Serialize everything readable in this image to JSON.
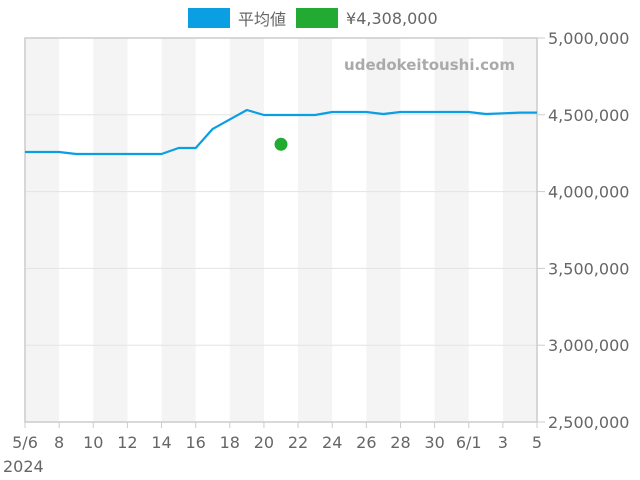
{
  "legend": {
    "items": [
      {
        "label": "平均値",
        "color": "#0a9ee2"
      },
      {
        "label": "¥4,308,000",
        "color": "#22aa33"
      }
    ]
  },
  "watermark": "udedokeitoushi.com",
  "chart_data": {
    "type": "line",
    "title": "",
    "xlabel": "",
    "ylabel": "",
    "year_label": "2024",
    "x_tick_labels": [
      "5/6",
      "8",
      "10",
      "12",
      "14",
      "16",
      "18",
      "20",
      "22",
      "24",
      "26",
      "28",
      "30",
      "6/1",
      "3",
      "5"
    ],
    "y_tick_labels": [
      "5,000,000",
      "4,500,000",
      "4,000,000",
      "3,500,000",
      "3,000,000",
      "2,500,000"
    ],
    "ylim": [
      2500000,
      5000000
    ],
    "y_ticks": [
      5000000,
      4500000,
      4000000,
      3500000,
      3000000,
      2500000
    ],
    "x_range_days": [
      0,
      30
    ],
    "grid": true,
    "legend_position": "top",
    "series": [
      {
        "name": "平均値",
        "color": "#0a9ee2",
        "type": "line",
        "points": [
          {
            "x": "5/6",
            "day": 0,
            "y": 4258000
          },
          {
            "x": "5/7",
            "day": 1,
            "y": 4258000
          },
          {
            "x": "5/8",
            "day": 2,
            "y": 4258000
          },
          {
            "x": "5/9",
            "day": 3,
            "y": 4245000
          },
          {
            "x": "5/10",
            "day": 4,
            "y": 4245000
          },
          {
            "x": "5/11",
            "day": 5,
            "y": 4245000
          },
          {
            "x": "5/12",
            "day": 6,
            "y": 4245000
          },
          {
            "x": "5/13",
            "day": 7,
            "y": 4245000
          },
          {
            "x": "5/14",
            "day": 8,
            "y": 4245000
          },
          {
            "x": "5/15",
            "day": 9,
            "y": 4284000
          },
          {
            "x": "5/16",
            "day": 10,
            "y": 4284000
          },
          {
            "x": "5/17",
            "day": 11,
            "y": 4408000
          },
          {
            "x": "5/18",
            "day": 12,
            "y": 4470000
          },
          {
            "x": "5/19",
            "day": 13,
            "y": 4531000
          },
          {
            "x": "5/20",
            "day": 14,
            "y": 4499000
          },
          {
            "x": "5/21",
            "day": 15,
            "y": 4499000
          },
          {
            "x": "5/22",
            "day": 16,
            "y": 4499000
          },
          {
            "x": "5/23",
            "day": 17,
            "y": 4499000
          },
          {
            "x": "5/24",
            "day": 18,
            "y": 4518000
          },
          {
            "x": "5/25",
            "day": 19,
            "y": 4518000
          },
          {
            "x": "5/26",
            "day": 20,
            "y": 4518000
          },
          {
            "x": "5/27",
            "day": 21,
            "y": 4505000
          },
          {
            "x": "5/28",
            "day": 22,
            "y": 4518000
          },
          {
            "x": "5/29",
            "day": 23,
            "y": 4518000
          },
          {
            "x": "5/30",
            "day": 24,
            "y": 4518000
          },
          {
            "x": "5/31",
            "day": 25,
            "y": 4518000
          },
          {
            "x": "6/1",
            "day": 26,
            "y": 4518000
          },
          {
            "x": "6/2",
            "day": 27,
            "y": 4505000
          },
          {
            "x": "6/3",
            "day": 28,
            "y": 4510000
          },
          {
            "x": "6/4",
            "day": 29,
            "y": 4514000
          },
          {
            "x": "6/5",
            "day": 30,
            "y": 4514000
          }
        ]
      },
      {
        "name": "¥4,308,000",
        "color": "#22aa33",
        "type": "scatter",
        "points": [
          {
            "x": "5/21",
            "day": 15,
            "y": 4308000
          }
        ]
      }
    ]
  }
}
